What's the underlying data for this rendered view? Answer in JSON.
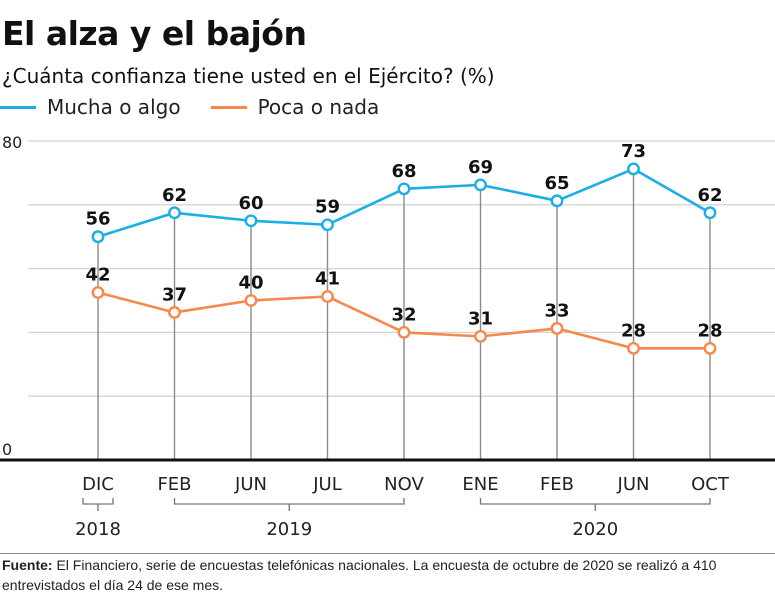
{
  "header": {
    "title": "El alza y el bajón",
    "subtitle": "¿Cuánta confianza tiene usted en el Ejército? (%)"
  },
  "legend": [
    {
      "label": "Mucha o algo",
      "color": "#19aee6"
    },
    {
      "label": "Poca o nada",
      "color": "#f5884a"
    }
  ],
  "footer": {
    "source_label": "Fuente:",
    "source_text": " El Financiero, serie de encuestas telefónicas nacionales. La encuesta de octubre de 2020 se realizó a 410 entrevistados el día 24 de ese mes."
  },
  "chart_data": {
    "type": "line",
    "title": "El alza y el bajón",
    "subtitle": "¿Cuánta confianza tiene usted en el Ejército? (%)",
    "xlabel": "",
    "ylabel": "",
    "ylim": [
      0,
      80
    ],
    "yticks_labeled": [
      "0",
      "80"
    ],
    "gridlines": [
      16,
      32,
      48,
      64,
      80
    ],
    "grid": true,
    "legend_position": "top-left",
    "categories": [
      "DIC",
      "FEB",
      "JUN",
      "JUL",
      "NOV",
      "ENE",
      "FEB",
      "JUN",
      "OCT"
    ],
    "year_groups": [
      {
        "label": "2018",
        "from": 0,
        "to": 0
      },
      {
        "label": "2019",
        "from": 1,
        "to": 4
      },
      {
        "label": "2020",
        "from": 5,
        "to": 8
      }
    ],
    "series": [
      {
        "name": "Mucha o algo",
        "color": "#19aee6",
        "values": [
          56,
          62,
          60,
          59,
          68,
          69,
          65,
          73,
          62
        ]
      },
      {
        "name": "Poca o nada",
        "color": "#f5884a",
        "values": [
          42,
          37,
          40,
          41,
          32,
          31,
          33,
          28,
          28
        ]
      }
    ]
  }
}
